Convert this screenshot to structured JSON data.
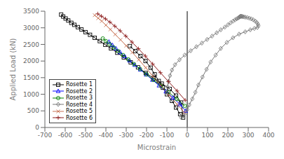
{
  "chart_data": {
    "type": "line",
    "title": "",
    "xlabel": "Microstrain",
    "ylabel": "Applied Load (kN)",
    "xlim": [
      -700,
      400
    ],
    "ylim": [
      0,
      3500
    ],
    "xticks": [
      -700,
      -600,
      -500,
      -400,
      -300,
      -200,
      -100,
      0,
      100,
      200,
      300,
      400
    ],
    "yticks": [
      0,
      500,
      1000,
      1500,
      2000,
      2500,
      3000,
      3500
    ],
    "vline_x": 0,
    "grid": false,
    "legend": "lower left",
    "series": [
      {
        "name": "Rosette 1",
        "color": "black",
        "marker": "square",
        "x": [
          -620,
          -610,
          -598,
          -585,
          -570,
          -555,
          -538,
          -520,
          -500,
          -478,
          -455,
          -430,
          -403,
          -375,
          -344,
          -312,
          -278,
          -242,
          -204,
          -165,
          -125,
          -86,
          -55,
          -30,
          -20,
          -35,
          -55,
          -75,
          -100,
          -120,
          -140,
          -160,
          -180,
          -205,
          -230,
          -255,
          -282
        ],
        "values": [
          3400,
          3340,
          3280,
          3220,
          3150,
          3090,
          3020,
          2950,
          2870,
          2790,
          2700,
          2600,
          2490,
          2380,
          2250,
          2110,
          1960,
          1810,
          1640,
          1480,
          1320,
          1160,
          960,
          750,
          300,
          400,
          600,
          800,
          1000,
          1200,
          1400,
          1600,
          1800,
          2000,
          2150,
          2300,
          2450
        ]
      },
      {
        "name": "Rosette 2",
        "color": "blue",
        "marker": "triangle",
        "x": [
          -385,
          -368,
          -350,
          -330,
          -308,
          -284,
          -258,
          -231,
          -202,
          -171,
          -139,
          -105,
          -70,
          -36,
          -8
        ],
        "values": [
          2580,
          2480,
          2375,
          2265,
          2145,
          2020,
          1885,
          1745,
          1595,
          1435,
          1265,
          1085,
          895,
          700,
          500
        ]
      },
      {
        "name": "Rosette 3",
        "color": "green",
        "marker": "circle",
        "x": [
          -415,
          -400,
          -382,
          -362,
          -340,
          -316,
          -290,
          -262,
          -232,
          -200,
          -166,
          -130,
          -92,
          -52,
          -12
        ],
        "values": [
          2680,
          2600,
          2510,
          2410,
          2300,
          2180,
          2050,
          1910,
          1760,
          1600,
          1430,
          1250,
          1060,
          860,
          650
        ]
      },
      {
        "name": "Rosette 4",
        "color": "#777777",
        "marker": "diamond",
        "x": [
          -30,
          -20,
          -10,
          0,
          10,
          25,
          40,
          55,
          75,
          95,
          115,
          140,
          165,
          195,
          225,
          255,
          285,
          310,
          330,
          345,
          350,
          348,
          342,
          335,
          325,
          315,
          305,
          295,
          285,
          278,
          272,
          268,
          265,
          262,
          260,
          258,
          255,
          250,
          243,
          235,
          225,
          213,
          200,
          185,
          165,
          145,
          122,
          98,
          72,
          45,
          17,
          -12,
          -38,
          -60,
          -75,
          -85,
          -92,
          -97,
          -100
        ],
        "values": [
          300,
          350,
          430,
          540,
          680,
          860,
          1060,
          1280,
          1520,
          1750,
          1970,
          2180,
          2380,
          2560,
          2700,
          2810,
          2880,
          2940,
          2980,
          3010,
          3060,
          3110,
          3160,
          3200,
          3240,
          3270,
          3290,
          3310,
          3320,
          3330,
          3340,
          3345,
          3348,
          3345,
          3340,
          3330,
          3315,
          3295,
          3270,
          3240,
          3200,
          3150,
          3090,
          3020,
          2940,
          2850,
          2750,
          2650,
          2540,
          2430,
          2310,
          2180,
          2040,
          1890,
          1730,
          1560,
          1390,
          1220,
          1060
        ]
      },
      {
        "name": "Rosette 5",
        "color": "#c87050",
        "marker": "x",
        "x": [
          -455,
          -438,
          -420,
          -400,
          -378,
          -354,
          -328,
          -300,
          -270,
          -238,
          -204,
          -168,
          -130,
          -90,
          -50,
          -15
        ],
        "values": [
          3380,
          3290,
          3200,
          3080,
          2950,
          2800,
          2640,
          2460,
          2260,
          2040,
          1800,
          1540,
          1260,
          980,
          700,
          450
        ]
      },
      {
        "name": "Rosette 6",
        "color": "#8b1a1a",
        "marker": "plus",
        "x": [
          -440,
          -422,
          -402,
          -380,
          -356,
          -330,
          -302,
          -272,
          -240,
          -206,
          -170,
          -132,
          -92,
          -50,
          -10
        ],
        "values": [
          3420,
          3350,
          3270,
          3170,
          3050,
          2910,
          2750,
          2570,
          2370,
          2150,
          1910,
          1650,
          1380,
          1100,
          820
        ]
      }
    ]
  }
}
